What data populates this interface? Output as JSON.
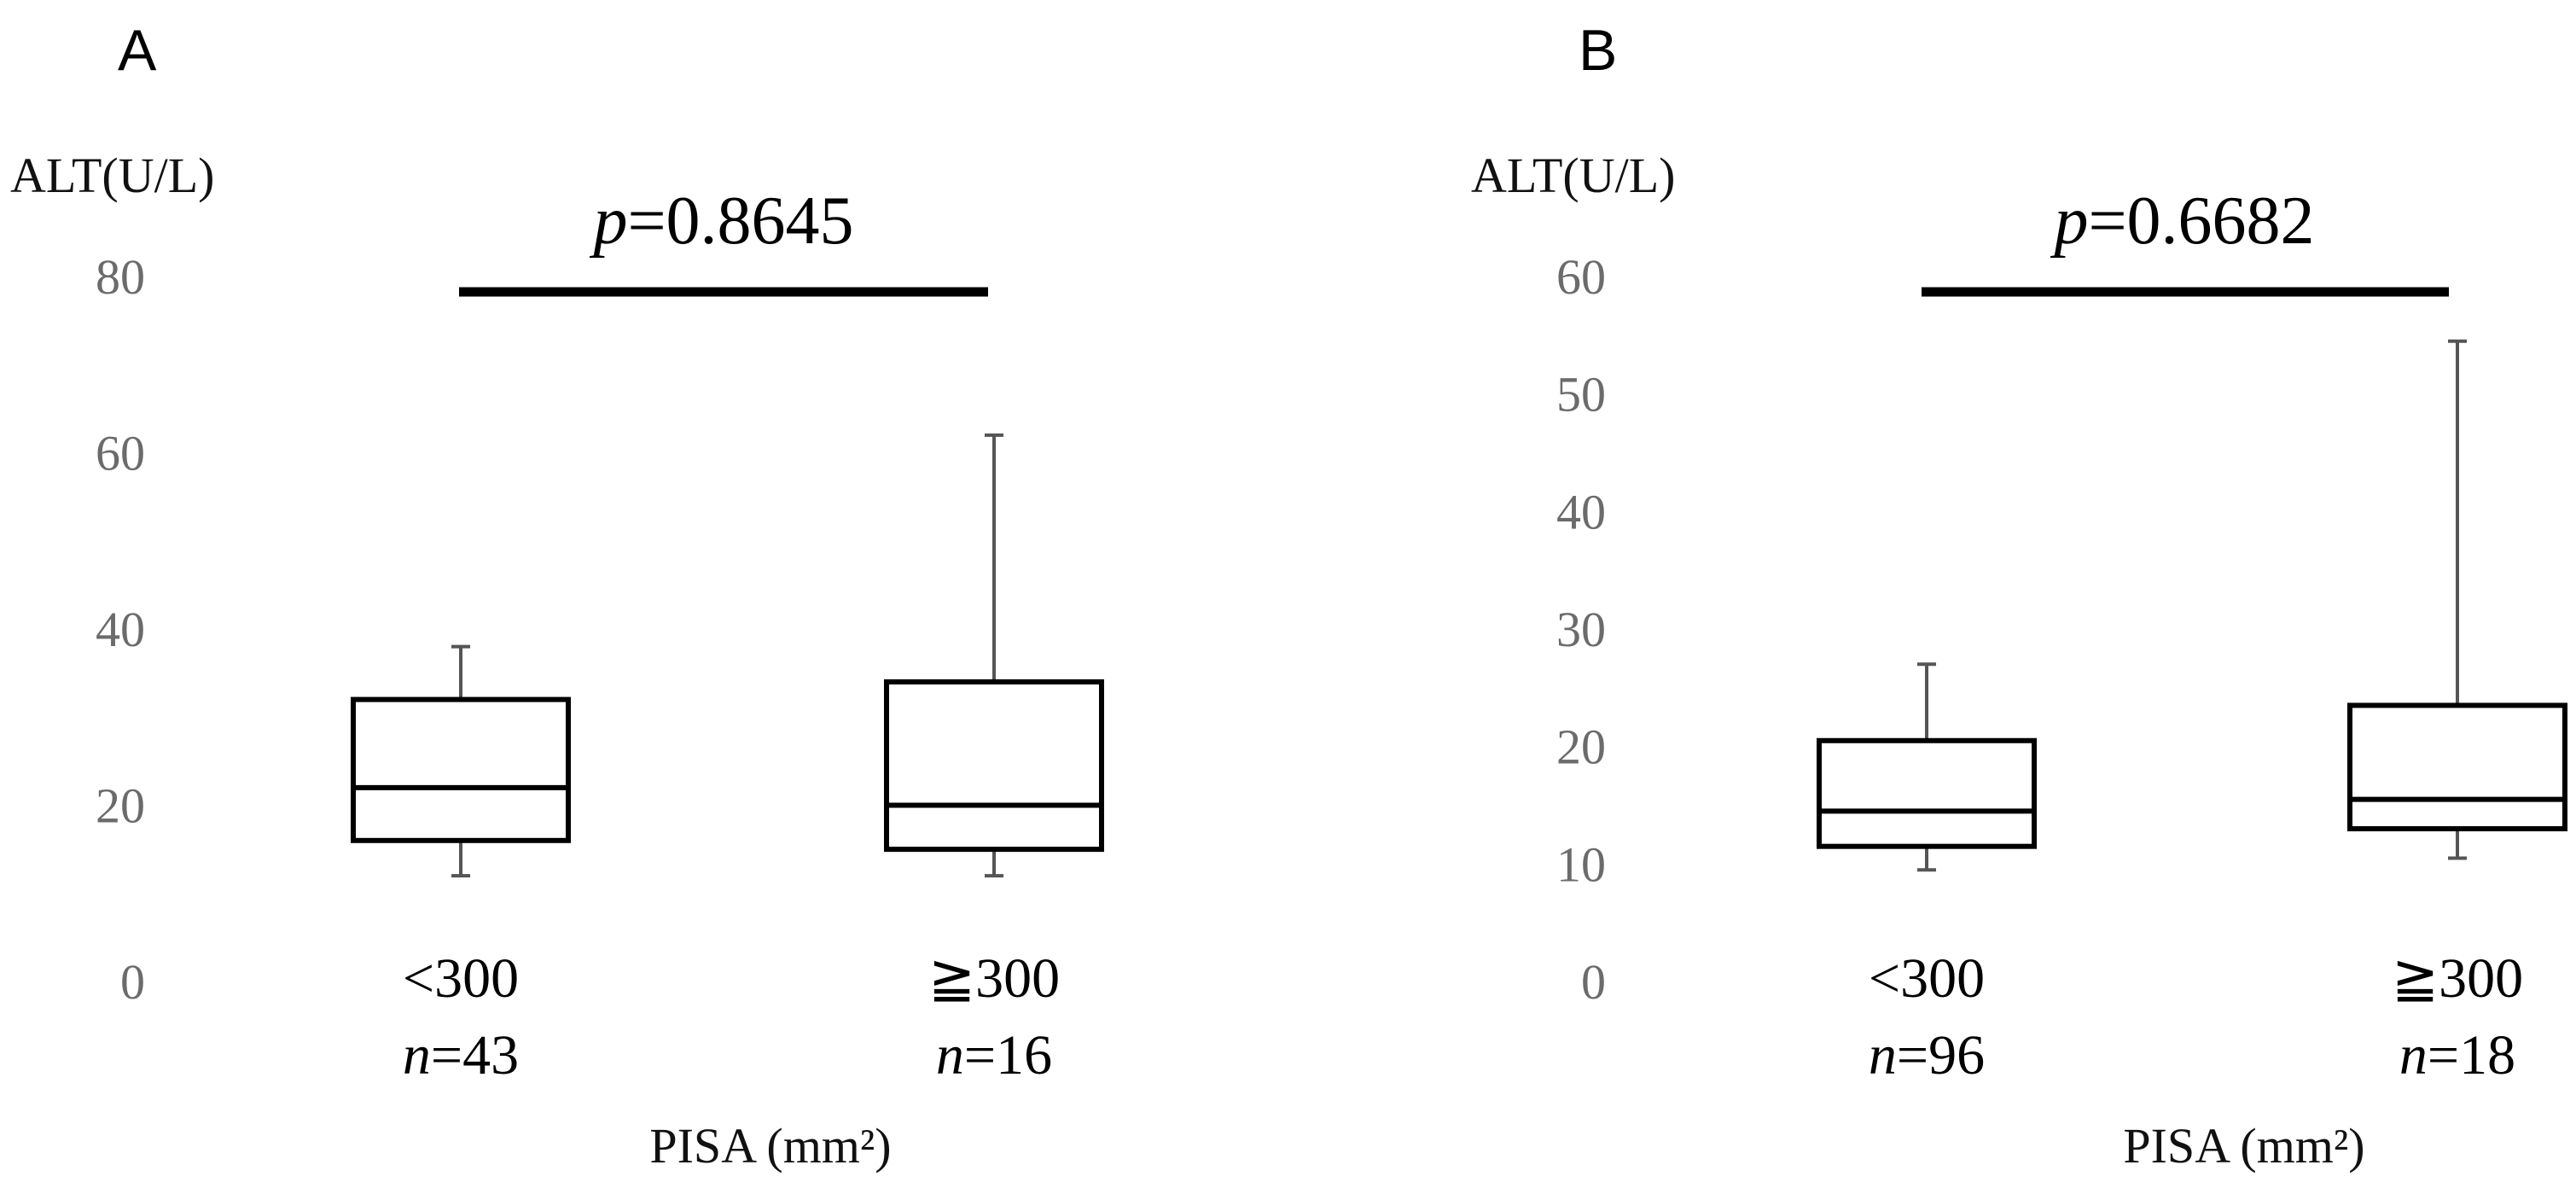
{
  "chart_data": [
    {
      "type": "box",
      "panel": "A",
      "ylabel": "ALT(U/L)",
      "xlabel": "PISA (mm²)",
      "ylim": [
        0,
        80
      ],
      "yticks": [
        "0",
        "20",
        "40",
        "60",
        "80"
      ],
      "y_tick_values": [
        0,
        20,
        40,
        60,
        80
      ],
      "grid": false,
      "comparison": {
        "p_symbol": "p",
        "p_value": "=0.8645"
      },
      "groups": [
        {
          "label": "<300",
          "n_symbol": "n",
          "n_value": "=43",
          "whisker_low": 12,
          "q1": 16,
          "median": 22,
          "q3": 32,
          "whisker_high": 38
        },
        {
          "label": "≧300",
          "n_symbol": "n",
          "n_value": "=16",
          "whisker_low": 12,
          "q1": 15,
          "median": 20,
          "q3": 34,
          "whisker_high": 62
        }
      ]
    },
    {
      "type": "box",
      "panel": "B",
      "ylabel": "ALT(U/L)",
      "xlabel": "PISA (mm²)",
      "ylim": [
        0,
        60
      ],
      "yticks": [
        "0",
        "10",
        "20",
        "30",
        "40",
        "50",
        "60"
      ],
      "y_tick_values": [
        0,
        10,
        20,
        30,
        40,
        50,
        60
      ],
      "grid": false,
      "comparison": {
        "p_symbol": "p",
        "p_value": "=0.6682"
      },
      "groups": [
        {
          "label": "<300",
          "n_symbol": "n",
          "n_value": "=96",
          "whisker_low": 9.5,
          "q1": 11.5,
          "median": 14.5,
          "q3": 20.5,
          "whisker_high": 27
        },
        {
          "label": "≧300",
          "n_symbol": "n",
          "n_value": "=18",
          "whisker_low": 10.5,
          "q1": 13,
          "median": 15.5,
          "q3": 23.5,
          "whisker_high": 54.5
        }
      ]
    }
  ],
  "colors": {
    "box_stroke": "#000000",
    "whisker": "#555555",
    "tick_text": "#6b6b6b",
    "text": "#000000"
  }
}
